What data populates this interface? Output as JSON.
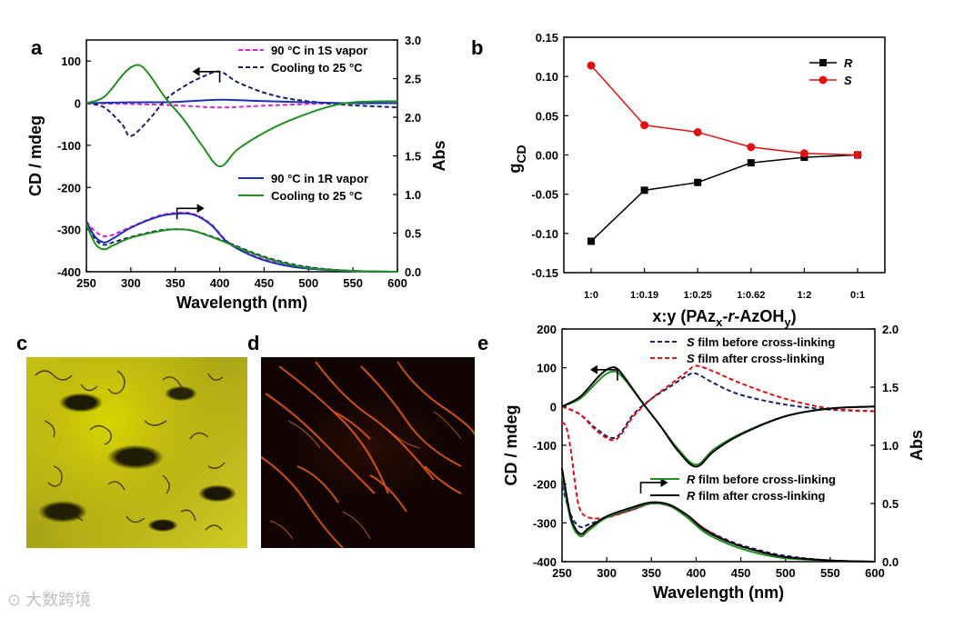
{
  "panel_labels": {
    "a": "a",
    "b": "b",
    "c": "c",
    "d": "d",
    "e": "e"
  },
  "watermark": "大数跨境",
  "chart_data": [
    {
      "id": "a",
      "type": "line",
      "xlabel": "Wavelength (nm)",
      "ylabel": "CD / mdeg",
      "y2label": "Abs",
      "xlim": [
        250,
        600
      ],
      "ylim": [
        -400,
        150
      ],
      "y2lim": [
        0.0,
        3.0
      ],
      "xticks": [
        "250",
        "300",
        "350",
        "400",
        "450",
        "500",
        "550",
        "600"
      ],
      "yticks": [
        "100",
        "0",
        "-100",
        "-200",
        "-300",
        "-400"
      ],
      "y2ticks": [
        "0.0",
        "0.5",
        "1.0",
        "1.5",
        "2.0",
        "2.5",
        "3.0"
      ],
      "legend_top": [
        {
          "label": "90 °C in 1S vapor",
          "color": "#e020e0",
          "dash": true
        },
        {
          "label": "Cooling to 25 °C",
          "color": "#1a1f6e",
          "dash": true
        }
      ],
      "legend_bottom": [
        {
          "label": "90 °C in 1R vapor",
          "color": "#1f2fb5",
          "dash": false
        },
        {
          "label": "Cooling  to 25 °C",
          "color": "#1f8f1f",
          "dash": false
        }
      ],
      "series": [
        {
          "name": "CD 90 °C in 1S vapor",
          "axis": "y",
          "color": "#e020e0",
          "dash": true,
          "x": [
            250,
            300,
            350,
            400,
            450,
            500,
            550,
            600
          ],
          "y": [
            0,
            -2,
            -5,
            -10,
            -6,
            -2,
            0,
            0
          ]
        },
        {
          "name": "CD Cooling to 25 °C (S)",
          "axis": "y",
          "color": "#1a1f6e",
          "dash": true,
          "x": [
            250,
            270,
            290,
            300,
            320,
            340,
            360,
            380,
            400,
            420,
            450,
            480,
            520,
            550,
            600
          ],
          "y": [
            0,
            -10,
            -50,
            -78,
            -40,
            10,
            40,
            62,
            75,
            50,
            25,
            10,
            0,
            -5,
            -10
          ]
        },
        {
          "name": "CD 90 °C in 1R vapor",
          "axis": "y",
          "color": "#1f2fb5",
          "dash": false,
          "x": [
            250,
            300,
            350,
            400,
            450,
            500,
            550,
            600
          ],
          "y": [
            0,
            2,
            3,
            8,
            5,
            2,
            0,
            0
          ]
        },
        {
          "name": "CD Cooling to 25 °C (R)",
          "axis": "y",
          "color": "#1f8f1f",
          "dash": false,
          "x": [
            250,
            270,
            290,
            300,
            310,
            320,
            340,
            360,
            380,
            400,
            420,
            450,
            480,
            520,
            550,
            600
          ],
          "y": [
            0,
            15,
            65,
            85,
            90,
            70,
            10,
            -40,
            -100,
            -150,
            -110,
            -70,
            -40,
            -10,
            2,
            5
          ]
        },
        {
          "name": "Abs 90 °C in 1S vapor",
          "axis": "y2",
          "color": "#e020e0",
          "dash": true,
          "x": [
            250,
            260,
            270,
            280,
            300,
            330,
            350,
            370,
            390,
            410,
            440,
            470,
            500,
            550,
            600
          ],
          "y": [
            0.65,
            0.52,
            0.46,
            0.48,
            0.58,
            0.72,
            0.76,
            0.75,
            0.62,
            0.38,
            0.2,
            0.1,
            0.05,
            0.01,
            0.0
          ]
        },
        {
          "name": "Abs Cooling to 25 °C (S)",
          "axis": "y2",
          "color": "#1a1f6e",
          "dash": true,
          "x": [
            250,
            260,
            270,
            280,
            300,
            330,
            350,
            370,
            400,
            430,
            460,
            500,
            550,
            600
          ],
          "y": [
            0.65,
            0.42,
            0.35,
            0.38,
            0.45,
            0.53,
            0.55,
            0.53,
            0.42,
            0.28,
            0.16,
            0.06,
            0.01,
            0.0
          ]
        },
        {
          "name": "Abs 90 °C in 1R vapor",
          "axis": "y2",
          "color": "#1f2fb5",
          "dash": false,
          "x": [
            250,
            260,
            270,
            280,
            300,
            330,
            350,
            370,
            390,
            410,
            440,
            470,
            500,
            550,
            600
          ],
          "y": [
            0.65,
            0.45,
            0.38,
            0.43,
            0.57,
            0.71,
            0.75,
            0.74,
            0.61,
            0.37,
            0.19,
            0.09,
            0.04,
            0.01,
            0.0
          ]
        },
        {
          "name": "Abs Cooling to 25 °C (R)",
          "axis": "y2",
          "color": "#1f8f1f",
          "dash": false,
          "x": [
            250,
            260,
            270,
            280,
            300,
            330,
            350,
            370,
            400,
            430,
            460,
            500,
            550,
            600
          ],
          "y": [
            0.62,
            0.36,
            0.29,
            0.34,
            0.44,
            0.52,
            0.55,
            0.53,
            0.41,
            0.27,
            0.15,
            0.05,
            0.01,
            0.0
          ]
        }
      ]
    },
    {
      "id": "b",
      "type": "line",
      "xlabel": "x:y (PAz",
      "xlabel_parts": [
        "x:y (PAz",
        "x",
        "-",
        "r",
        "-AzOH",
        "y",
        ")"
      ],
      "ylabel": "g",
      "ylabel_sub": "CD",
      "categories": [
        "1:0",
        "1:0.19",
        "1:0.25",
        "1:0.62",
        "1:2",
        "0:1"
      ],
      "ylim": [
        -0.15,
        0.15
      ],
      "yticks": [
        "0.15",
        "0.10",
        "0.05",
        "0.00",
        "-0.05",
        "-0.10",
        "-0.15"
      ],
      "series": [
        {
          "name": "R",
          "color": "#000000",
          "marker": "square",
          "values": [
            -0.11,
            -0.045,
            -0.035,
            -0.01,
            -0.003,
            0.0
          ]
        },
        {
          "name": "S",
          "color": "#e01010",
          "marker": "circle",
          "values": [
            0.114,
            0.038,
            0.029,
            0.01,
            0.002,
            0.0
          ]
        }
      ]
    },
    {
      "id": "e",
      "type": "line",
      "xlabel": "Wavelength (nm)",
      "ylabel": "CD / mdeg",
      "y2label": "Abs",
      "xlim": [
        250,
        600
      ],
      "ylim": [
        -400,
        200
      ],
      "y2lim": [
        0.0,
        2.0
      ],
      "xticks": [
        "250",
        "300",
        "350",
        "400",
        "450",
        "500",
        "550",
        "600"
      ],
      "yticks": [
        "200",
        "100",
        "0",
        "-100",
        "-200",
        "-300",
        "-400"
      ],
      "y2ticks": [
        "0.0",
        "0.5",
        "1.0",
        "1.5",
        "2.0"
      ],
      "legend_top": [
        {
          "italic": "S",
          "label": " film before cross-linking",
          "color": "#1a1f6e",
          "dash": true
        },
        {
          "italic": "S",
          "label": " film after cross-linking",
          "color": "#e01010",
          "dash": true
        }
      ],
      "legend_bottom": [
        {
          "italic": "R",
          "label": " film before cross-linking",
          "color": "#1f8f1f",
          "dash": false
        },
        {
          "italic": "R",
          "label": " film after cross-linking",
          "color": "#000000",
          "dash": false
        }
      ],
      "series": [
        {
          "name": "CD S film before cross-linking",
          "axis": "y",
          "color": "#1a1f6e",
          "dash": true,
          "x": [
            250,
            270,
            290,
            310,
            330,
            350,
            370,
            390,
            400,
            420,
            450,
            500,
            550,
            600
          ],
          "y": [
            0,
            -20,
            -60,
            -80,
            -20,
            20,
            50,
            80,
            85,
            60,
            30,
            5,
            -8,
            -12
          ]
        },
        {
          "name": "CD S film after cross-linking",
          "axis": "y",
          "color": "#e01010",
          "dash": true,
          "x": [
            250,
            270,
            290,
            310,
            330,
            350,
            370,
            390,
            400,
            420,
            450,
            500,
            550,
            600
          ],
          "y": [
            0,
            -20,
            -65,
            -85,
            -25,
            20,
            55,
            90,
            105,
            90,
            60,
            20,
            -5,
            -12
          ]
        },
        {
          "name": "CD R film before cross-linking",
          "axis": "y",
          "color": "#1f8f1f",
          "dash": false,
          "x": [
            250,
            270,
            290,
            300,
            310,
            320,
            340,
            360,
            380,
            400,
            420,
            450,
            500,
            550,
            600
          ],
          "y": [
            0,
            20,
            65,
            85,
            90,
            70,
            10,
            -50,
            -110,
            -150,
            -110,
            -70,
            -25,
            -5,
            0
          ]
        },
        {
          "name": "CD R film after cross-linking",
          "axis": "y",
          "color": "#000000",
          "dash": false,
          "x": [
            250,
            270,
            290,
            300,
            310,
            320,
            340,
            360,
            380,
            400,
            420,
            450,
            500,
            550,
            600
          ],
          "y": [
            0,
            25,
            75,
            95,
            100,
            75,
            10,
            -50,
            -115,
            -155,
            -115,
            -72,
            -25,
            -5,
            0
          ]
        },
        {
          "name": "Abs S film before cross-linking",
          "axis": "y2",
          "color": "#1a1f6e",
          "dash": true,
          "x": [
            250,
            260,
            270,
            280,
            300,
            330,
            350,
            370,
            390,
            410,
            440,
            470,
            500,
            550,
            600
          ],
          "y": [
            0.65,
            0.4,
            0.3,
            0.32,
            0.38,
            0.45,
            0.5,
            0.48,
            0.4,
            0.28,
            0.17,
            0.1,
            0.05,
            0.01,
            0.0
          ]
        },
        {
          "name": "Abs S film after cross-linking",
          "axis": "y2",
          "color": "#e01010",
          "dash": true,
          "x": [
            250,
            255,
            260,
            265,
            270,
            280,
            300,
            330,
            350,
            370,
            390,
            410,
            440,
            470,
            500,
            550,
            600
          ],
          "y": [
            1.2,
            1.15,
            0.95,
            0.65,
            0.45,
            0.38,
            0.38,
            0.45,
            0.5,
            0.48,
            0.4,
            0.28,
            0.16,
            0.09,
            0.04,
            0.01,
            0.0
          ]
        },
        {
          "name": "Abs R film before cross-linking",
          "axis": "y2",
          "color": "#1f8f1f",
          "dash": false,
          "x": [
            250,
            260,
            270,
            280,
            300,
            330,
            350,
            370,
            390,
            410,
            440,
            470,
            500,
            550,
            600
          ],
          "y": [
            0.75,
            0.35,
            0.22,
            0.27,
            0.38,
            0.46,
            0.5,
            0.48,
            0.38,
            0.25,
            0.14,
            0.07,
            0.03,
            0.01,
            0.0
          ]
        },
        {
          "name": "Abs R film after cross-linking",
          "axis": "y2",
          "color": "#000000",
          "dash": false,
          "x": [
            250,
            260,
            270,
            280,
            300,
            330,
            350,
            370,
            390,
            410,
            440,
            470,
            500,
            550,
            600
          ],
          "y": [
            0.8,
            0.38,
            0.24,
            0.29,
            0.39,
            0.47,
            0.51,
            0.49,
            0.4,
            0.27,
            0.16,
            0.09,
            0.04,
            0.01,
            0.0
          ]
        }
      ]
    }
  ]
}
